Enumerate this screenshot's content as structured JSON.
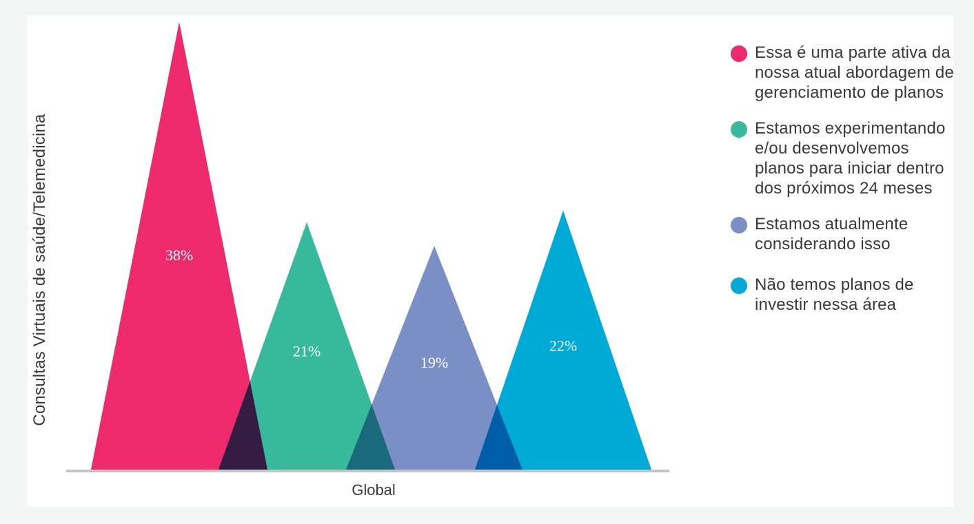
{
  "chart_data": {
    "type": "area",
    "ylabel": "Consultas Virtuais de saúde/Telemedicina",
    "categories": [
      "Global"
    ],
    "ylim": [
      0,
      38
    ],
    "grid": false,
    "legend_position": "right",
    "series": [
      {
        "name": "Essa é uma parte ativa da\nnossa atual abordagem de\ngerenciamento de planos",
        "value": 38,
        "label": "38%",
        "color": "#ec2a6c"
      },
      {
        "name": "Estamos experimentando\ne/ou desenvolvemos\nplanos para iniciar dentro\ndos próximos 24 meses",
        "value": 21,
        "label": "21%",
        "color": "#37b99b"
      },
      {
        "name": "Estamos atualmente\nconsiderando isso",
        "value": 19,
        "label": "19%",
        "color": "#7a8fc6"
      },
      {
        "name": "Não temos planos de\ninvestir nessa área",
        "value": 22,
        "label": "22%",
        "color": "#00aad6"
      }
    ]
  }
}
